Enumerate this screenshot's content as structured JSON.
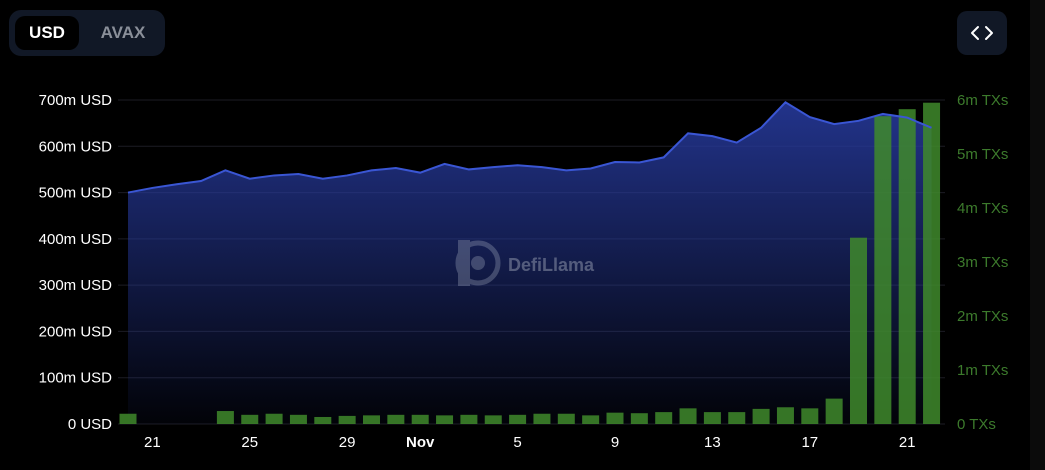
{
  "currency_toggle": {
    "options": [
      "USD",
      "AVAX"
    ],
    "selected": "USD"
  },
  "embed_icon": "code-brackets-icon",
  "watermark": {
    "text": "DefiLlama",
    "icon": "llama-logo-icon"
  },
  "colors": {
    "background": "#000000",
    "tvl_line": "#3a56d4",
    "tvl_fill_top": "#26399a",
    "bars": "#3f8a2c",
    "left_axis_text": "#ffffff",
    "right_axis_text": "#3c7a2c",
    "grid": "#1c1c24"
  },
  "chart_data": {
    "type": "area",
    "x_tick_labels": [
      "21",
      "25",
      "29",
      "Nov",
      "5",
      "9",
      "13",
      "17",
      "21"
    ],
    "x": [
      "Oct 20",
      "Oct 21",
      "Oct 22",
      "Oct 23",
      "Oct 24",
      "Oct 25",
      "Oct 26",
      "Oct 27",
      "Oct 28",
      "Oct 29",
      "Oct 30",
      "Oct 31",
      "Nov 1",
      "Nov 2",
      "Nov 3",
      "Nov 4",
      "Nov 5",
      "Nov 6",
      "Nov 7",
      "Nov 8",
      "Nov 9",
      "Nov 10",
      "Nov 11",
      "Nov 12",
      "Nov 13",
      "Nov 14",
      "Nov 15",
      "Nov 16",
      "Nov 17",
      "Nov 18",
      "Nov 19",
      "Nov 20",
      "Nov 21",
      "Nov 22"
    ],
    "series": [
      {
        "axis": "left",
        "type": "area",
        "values": [
          500,
          510,
          518,
          525,
          548,
          530,
          537,
          540,
          530,
          537,
          548,
          553,
          543,
          562,
          550,
          555,
          559,
          555,
          548,
          552,
          566,
          565,
          576,
          628,
          622,
          608,
          640,
          695,
          663,
          648,
          655,
          670,
          662,
          640
        ]
      },
      {
        "axis": "right",
        "type": "bar",
        "values": [
          0.19,
          0,
          0,
          0,
          0.24,
          0.17,
          0.19,
          0.17,
          0.13,
          0.15,
          0.16,
          0.17,
          0.17,
          0.16,
          0.17,
          0.16,
          0.17,
          0.19,
          0.19,
          0.16,
          0.21,
          0.2,
          0.22,
          0.29,
          0.22,
          0.22,
          0.28,
          0.31,
          0.29,
          0.47,
          3.45,
          5.7,
          5.83,
          5.95
        ]
      }
    ],
    "left_axis": {
      "ticks": [
        "0 USD",
        "100m USD",
        "200m USD",
        "300m USD",
        "400m USD",
        "500m USD",
        "600m USD",
        "700m USD"
      ],
      "ylim": [
        0,
        700
      ]
    },
    "right_axis": {
      "ticks": [
        "0 TXs",
        "1m TXs",
        "2m TXs",
        "3m TXs",
        "4m TXs",
        "5m TXs",
        "6m TXs"
      ],
      "ylim": [
        0,
        6
      ]
    },
    "grid": true,
    "legend": "none"
  }
}
